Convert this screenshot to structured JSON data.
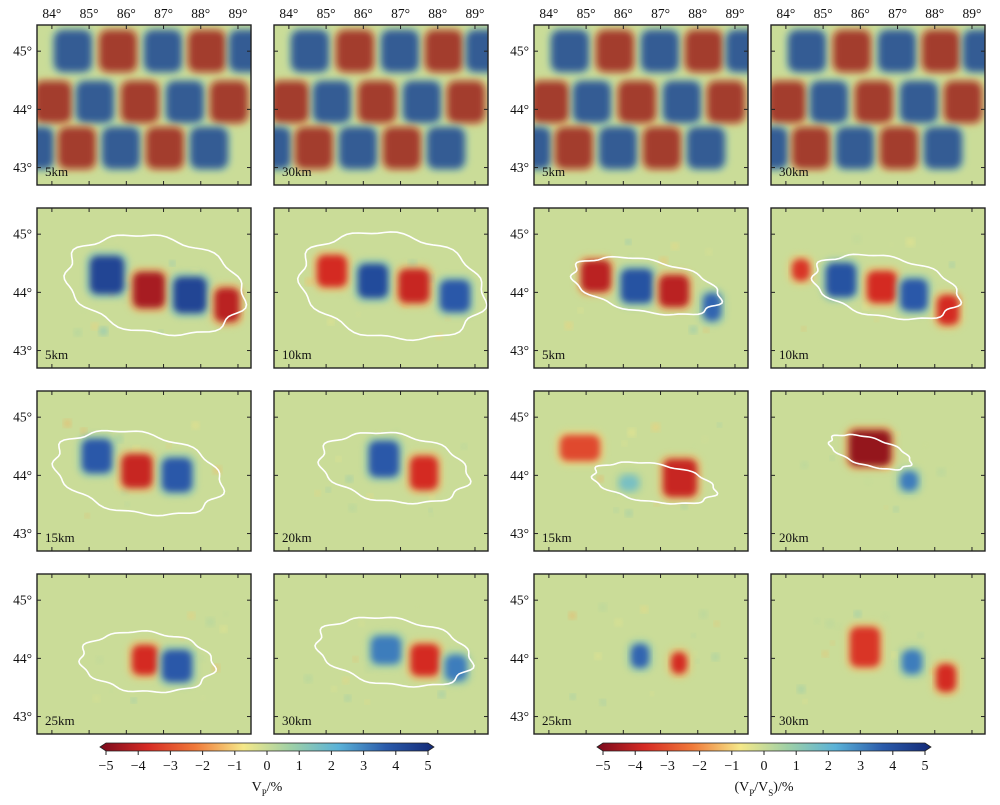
{
  "lon_tick_labels": [
    "84°",
    "85°",
    "86°",
    "87°",
    "88°",
    "89°"
  ],
  "lat_tick_labels": [
    "45°",
    "44°",
    "43°"
  ],
  "vp_panels": [
    {
      "depth_label": "5km",
      "kind": "input"
    },
    {
      "depth_label": "30km",
      "kind": "input"
    },
    {
      "depth_label": "5km",
      "kind": "recovered"
    },
    {
      "depth_label": "10km",
      "kind": "recovered"
    },
    {
      "depth_label": "15km",
      "kind": "recovered"
    },
    {
      "depth_label": "20km",
      "kind": "recovered"
    },
    {
      "depth_label": "25km",
      "kind": "recovered"
    },
    {
      "depth_label": "30km",
      "kind": "recovered"
    }
  ],
  "vpvs_panels": [
    {
      "depth_label": "5km",
      "kind": "input"
    },
    {
      "depth_label": "30km",
      "kind": "input"
    },
    {
      "depth_label": "5km",
      "kind": "recovered"
    },
    {
      "depth_label": "10km",
      "kind": "recovered"
    },
    {
      "depth_label": "15km",
      "kind": "recovered"
    },
    {
      "depth_label": "20km",
      "kind": "recovered"
    },
    {
      "depth_label": "25km",
      "kind": "recovered"
    },
    {
      "depth_label": "30km",
      "kind": "recovered"
    }
  ],
  "colorbars": [
    {
      "label": "V_P/%",
      "label_main": "V",
      "label_sub": "P",
      "label_suffix": "/%",
      "ticks": [
        "−5",
        "−4",
        "−3",
        "−2",
        "−1",
        "0",
        "1",
        "2",
        "3",
        "4",
        "5"
      ]
    },
    {
      "label": "(V_P/V_S)/%",
      "label_main": "(V",
      "label_sub": "P",
      "label_mid": "/V",
      "label_sub2": "S",
      "label_suffix": ")/%",
      "ticks": [
        "−5",
        "−4",
        "−3",
        "−2",
        "−1",
        "0",
        "1",
        "2",
        "3",
        "4",
        "5"
      ]
    }
  ],
  "chart_data": {
    "type": "heatmap",
    "title": "",
    "xlabel": "",
    "ylabel": "",
    "x_ticks": [
      84,
      85,
      86,
      87,
      88,
      89
    ],
    "y_ticks": [
      45,
      44,
      43
    ],
    "color_scale": {
      "min": -5,
      "max": 5,
      "colors": [
        "#7a0a1c",
        "#d62a24",
        "#f07a3a",
        "#f5e889",
        "#9ed0a6",
        "#5ab2d8",
        "#2a5aaa",
        "#142a78"
      ]
    },
    "checker_amplitude": 5,
    "columns": [
      {
        "name": "V_P",
        "panels": [
          "5km",
          "30km",
          "5km",
          "10km",
          "15km",
          "20km",
          "25km",
          "30km"
        ]
      },
      {
        "name": "V_P/V_S",
        "panels": [
          "5km",
          "30km",
          "5km",
          "10km",
          "15km",
          "20km",
          "25km",
          "30km"
        ]
      }
    ]
  }
}
